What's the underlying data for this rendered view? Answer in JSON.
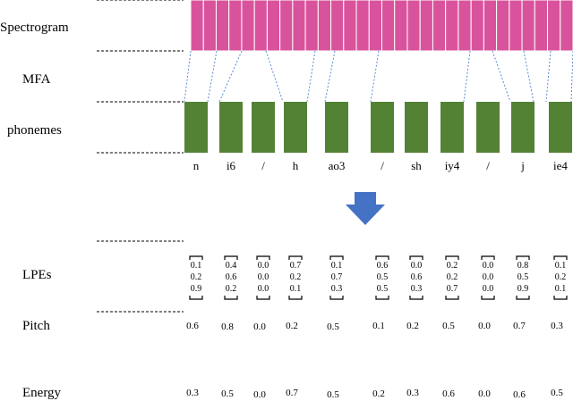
{
  "labels": {
    "spectrogram": "Spectrogram",
    "mfa": "MFA",
    "phonemes": "phonemes",
    "lpes": "LPEs",
    "pitch": "Pitch",
    "energy": "Energy"
  },
  "spectrogram": {
    "frame_count": 30,
    "fill_color": "#d9539c",
    "stroke_color": "#ffffff"
  },
  "phoneme_color": "#548235",
  "arrow_color": "#4472c4",
  "alignment_line_color": "#5b8bd6",
  "phonemes": [
    {
      "symbol": "n",
      "lpe": [
        "0.1",
        "0.2",
        "0.9"
      ],
      "pitch": "0.6",
      "energy": "0.3"
    },
    {
      "symbol": "i6",
      "lpe": [
        "0.4",
        "0.6",
        "0.2"
      ],
      "pitch": "0.8",
      "energy": "0.5"
    },
    {
      "symbol": "/",
      "lpe": [
        "0.0",
        "0.0",
        "0.0"
      ],
      "pitch": "0.0",
      "energy": "0.0"
    },
    {
      "symbol": "h",
      "lpe": [
        "0.7",
        "0.2",
        "0.1"
      ],
      "pitch": "0.2",
      "energy": "0.7"
    },
    {
      "symbol": "ao3",
      "lpe": [
        "0.1",
        "0.7",
        "0.3"
      ],
      "pitch": "0.5",
      "energy": "0.5"
    },
    {
      "symbol": "/",
      "lpe": [
        "0.6",
        "0.5",
        "0.5"
      ],
      "pitch": "0.1",
      "energy": "0.2"
    },
    {
      "symbol": "sh",
      "lpe": [
        "0.0",
        "0.6",
        "0.3"
      ],
      "pitch": "0.2",
      "energy": "0.3"
    },
    {
      "symbol": "iy4",
      "lpe": [
        "0.2",
        "0.2",
        "0.7"
      ],
      "pitch": "0.5",
      "energy": "0.6"
    },
    {
      "symbol": "/",
      "lpe": [
        "0.0",
        "0.0",
        "0.0"
      ],
      "pitch": "0.0",
      "energy": "0.0"
    },
    {
      "symbol": "j",
      "lpe": [
        "0.8",
        "0.5",
        "0.9"
      ],
      "pitch": "0.7",
      "energy": "0.6"
    },
    {
      "symbol": "ie4",
      "lpe": [
        "0.1",
        "0.2",
        "0.1"
      ],
      "pitch": "0.3",
      "energy": "0.5"
    }
  ]
}
